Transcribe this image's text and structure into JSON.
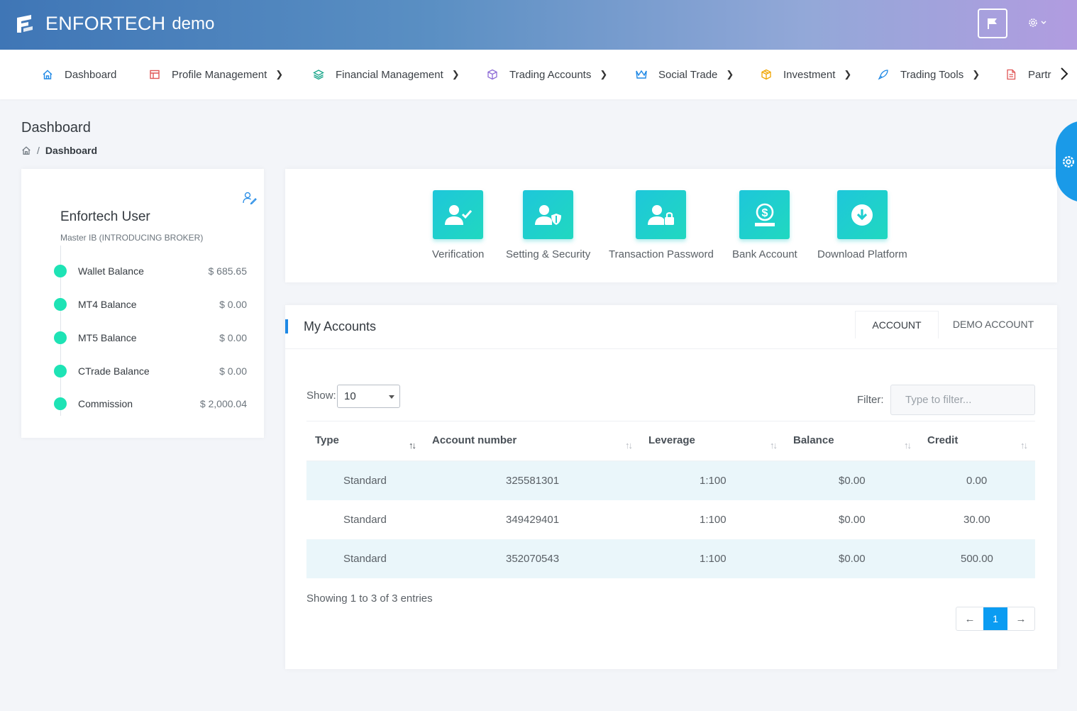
{
  "header": {
    "brand": "ENFORTECH",
    "brand_suffix": "demo"
  },
  "nav": {
    "items": [
      {
        "label": "Dashboard",
        "icon": "home-icon"
      },
      {
        "label": "Profile Management",
        "icon": "profile-icon"
      },
      {
        "label": "Financial Management",
        "icon": "layers-icon"
      },
      {
        "label": "Trading Accounts",
        "icon": "cube-icon"
      },
      {
        "label": "Social Trade",
        "icon": "crown-icon"
      },
      {
        "label": "Investment",
        "icon": "box-icon"
      },
      {
        "label": "Trading Tools",
        "icon": "rocket-icon"
      },
      {
        "label": "Partr",
        "icon": "document-icon"
      }
    ]
  },
  "page": {
    "title": "Dashboard",
    "breadcrumb_sep": "/",
    "breadcrumb_current": "Dashboard"
  },
  "profile": {
    "name": "Enfortech User",
    "role": "Master IB (INTRODUCING BROKER)",
    "balances": [
      {
        "label": "Wallet Balance",
        "value": "$ 685.65"
      },
      {
        "label": "MT4 Balance",
        "value": "$ 0.00"
      },
      {
        "label": "MT5 Balance",
        "value": "$ 0.00"
      },
      {
        "label": "CTrade Balance",
        "value": "$ 0.00"
      },
      {
        "label": "Commission",
        "value": "$ 2,000.04"
      }
    ],
    "dot_color": "#1ee3b5"
  },
  "quick_links": [
    {
      "label": "Verification",
      "icon": "user-check-icon"
    },
    {
      "label": "Setting & Security",
      "icon": "user-shield-icon"
    },
    {
      "label": "Transaction Password",
      "icon": "user-lock-icon"
    },
    {
      "label": "Bank Account",
      "icon": "dollar-hand-icon"
    },
    {
      "label": "Download Platform",
      "icon": "download-icon"
    }
  ],
  "accounts": {
    "title": "My Accounts",
    "tabs": [
      "ACCOUNT",
      "DEMO ACCOUNT"
    ],
    "active_tab": "ACCOUNT",
    "show_label": "Show:",
    "show_value": "10",
    "filter_label": "Filter:",
    "filter_placeholder": "Type to filter...",
    "columns": [
      "Type",
      "Account number",
      "Leverage",
      "Balance",
      "Credit"
    ],
    "rows": [
      {
        "type": "Standard",
        "number": "325581301",
        "leverage": "1:100",
        "balance": "$0.00",
        "credit": "0.00"
      },
      {
        "type": "Standard",
        "number": "349429401",
        "leverage": "1:100",
        "balance": "$0.00",
        "credit": "30.00"
      },
      {
        "type": "Standard",
        "number": "352070543",
        "leverage": "1:100",
        "balance": "$0.00",
        "credit": "500.00"
      }
    ],
    "info": "Showing 1 to 3 of 3 entries",
    "pager": {
      "prev": "←",
      "current": "1",
      "next": "→"
    }
  },
  "colors": {
    "accent": "#1e88e5",
    "tile_gradient": [
      "#1ec7da",
      "#20d8c0"
    ],
    "page_active": "#0b9cf2"
  }
}
